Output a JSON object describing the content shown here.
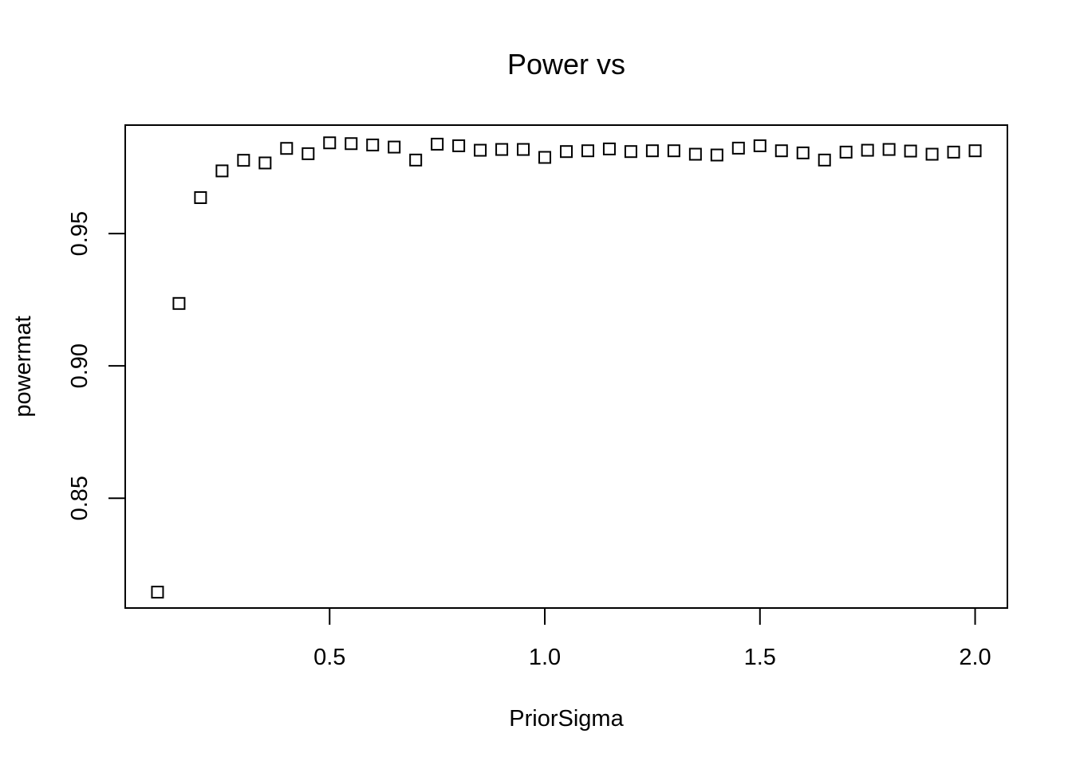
{
  "chart_data": {
    "type": "scatter",
    "title": "Power vs",
    "xlabel": "PriorSigma",
    "ylabel": "powermat",
    "xlim": [
      0.025,
      2.075
    ],
    "ylim": [
      0.8085,
      0.991
    ],
    "xticks": [
      0.5,
      1.0,
      1.5,
      2.0
    ],
    "xtick_labels": [
      "0.5",
      "1.0",
      "1.5",
      "2.0"
    ],
    "yticks": [
      0.85,
      0.9,
      0.95
    ],
    "ytick_labels": [
      "0.85",
      "0.90",
      "0.95"
    ],
    "marker": "open-square",
    "grid": false,
    "legend": "none",
    "series": [
      {
        "x": [
          0.1,
          0.15,
          0.2,
          0.25,
          0.3,
          0.35,
          0.4,
          0.45,
          0.5,
          0.55,
          0.6,
          0.65,
          0.7,
          0.75,
          0.8,
          0.85,
          0.9,
          0.95,
          1.0,
          1.05,
          1.1,
          1.15,
          1.2,
          1.25,
          1.3,
          1.35,
          1.4,
          1.45,
          1.5,
          1.55,
          1.6,
          1.65,
          1.7,
          1.75,
          1.8,
          1.85,
          1.9,
          1.95,
          2.0
        ],
        "y": [
          0.8145,
          0.9236,
          0.9636,
          0.9737,
          0.9777,
          0.9767,
          0.9822,
          0.9802,
          0.9843,
          0.984,
          0.9835,
          0.9827,
          0.9778,
          0.9838,
          0.9832,
          0.9815,
          0.9818,
          0.9818,
          0.9788,
          0.981,
          0.9813,
          0.982,
          0.981,
          0.9813,
          0.9813,
          0.98,
          0.9797,
          0.9823,
          0.9832,
          0.9813,
          0.9805,
          0.9778,
          0.9808,
          0.9815,
          0.9818,
          0.9812,
          0.98,
          0.9808,
          0.9813
        ]
      }
    ]
  }
}
